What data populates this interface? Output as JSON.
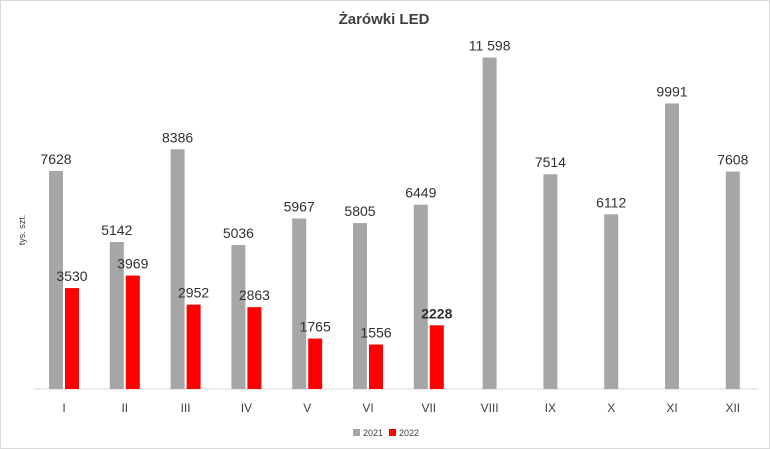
{
  "chart_data": {
    "type": "bar",
    "title": "Żarówki LED",
    "ylabel": "tys. szt.",
    "xlabel": "",
    "categories": [
      "I",
      "II",
      "III",
      "IV",
      "V",
      "VI",
      "VII",
      "VIII",
      "IX",
      "X",
      "XI",
      "XII"
    ],
    "series": [
      {
        "name": "2021",
        "color": "#a6a6a6",
        "values": [
          7628,
          5142,
          8386,
          5036,
          5967,
          5805,
          6449,
          11598,
          7514,
          6112,
          9991,
          7608
        ],
        "labels": [
          "7628",
          "5142",
          "8386",
          "5036",
          "5967",
          "5805",
          "6449",
          "11 598",
          "7514",
          "6112",
          "9991",
          "7608"
        ]
      },
      {
        "name": "2022",
        "color": "#ff0000",
        "values": [
          3530,
          3969,
          2952,
          2863,
          1765,
          1556,
          2228,
          null,
          null,
          null,
          null,
          null
        ],
        "labels": [
          "3530",
          "3969",
          "2952",
          "2863",
          "1765",
          "1556",
          "2228",
          null,
          null,
          null,
          null,
          null
        ],
        "bold_label_index": 6
      }
    ],
    "ylim": [
      0,
      12000
    ],
    "grid": false,
    "legend_position": "bottom"
  }
}
